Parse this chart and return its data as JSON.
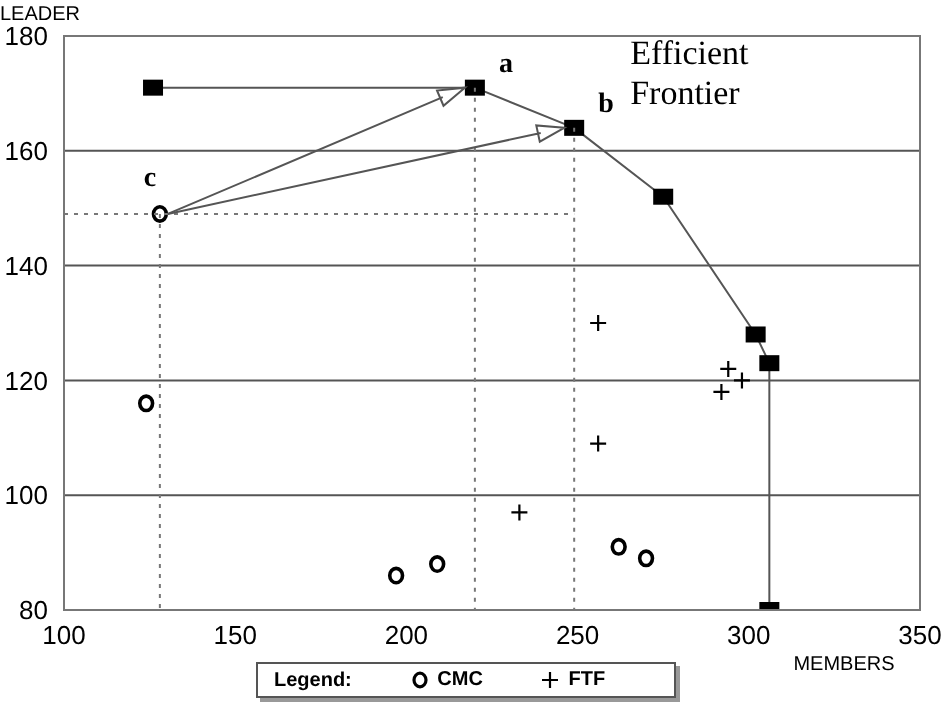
{
  "chart_data": {
    "type": "scatter",
    "xlabel": "MEMBERS",
    "ylabel": "LEADER",
    "legend_title": "Legend:",
    "xlim": [
      100,
      350
    ],
    "xticks": [
      100,
      150,
      200,
      250,
      300,
      350
    ],
    "ylim": [
      80,
      180
    ],
    "yticks": [
      80,
      100,
      120,
      140,
      160,
      180
    ],
    "grid": "y",
    "legend": "bottom",
    "series": [
      {
        "name": "Efficient Frontier",
        "type": "line",
        "marker": "square",
        "color": "#000000",
        "x": [
          126,
          220,
          249,
          275,
          302,
          306,
          306
        ],
        "values": [
          171,
          171,
          164,
          152,
          128,
          123,
          80
        ]
      },
      {
        "name": "CMC",
        "type": "scatter",
        "marker": "circle",
        "color": "#000000",
        "x": [
          128,
          124,
          197,
          209,
          262,
          270
        ],
        "values": [
          149,
          116,
          86,
          88,
          91,
          89
        ]
      },
      {
        "name": "FTF",
        "type": "scatter",
        "marker": "cross",
        "color": "#000000",
        "x": [
          233,
          256,
          256,
          292,
          294,
          298
        ],
        "values": [
          97,
          109,
          130,
          118,
          122,
          120
        ]
      },
      {
        "type": "line",
        "marker": "none",
        "line_style": "dotted",
        "color": "#777777",
        "x": [
          100,
          249
        ],
        "values": [
          149,
          149
        ]
      },
      {
        "type": "line",
        "marker": "none",
        "line_style": "dotted",
        "color": "#777777",
        "x": [
          128,
          128
        ],
        "values": [
          149,
          80
        ]
      },
      {
        "type": "line",
        "marker": "none",
        "line_style": "dotted",
        "color": "#777777",
        "x": [
          220,
          220
        ],
        "values": [
          171,
          80
        ]
      },
      {
        "type": "line",
        "marker": "none",
        "line_style": "dotted",
        "color": "#777777",
        "x": [
          249,
          249
        ],
        "values": [
          164,
          80
        ]
      }
    ],
    "annotations": [
      {
        "text": "a",
        "x": 220,
        "y": 171
      },
      {
        "text": "b",
        "x": 249,
        "y": 164
      },
      {
        "text": "c",
        "x": 128,
        "y": 149
      }
    ]
  }
}
